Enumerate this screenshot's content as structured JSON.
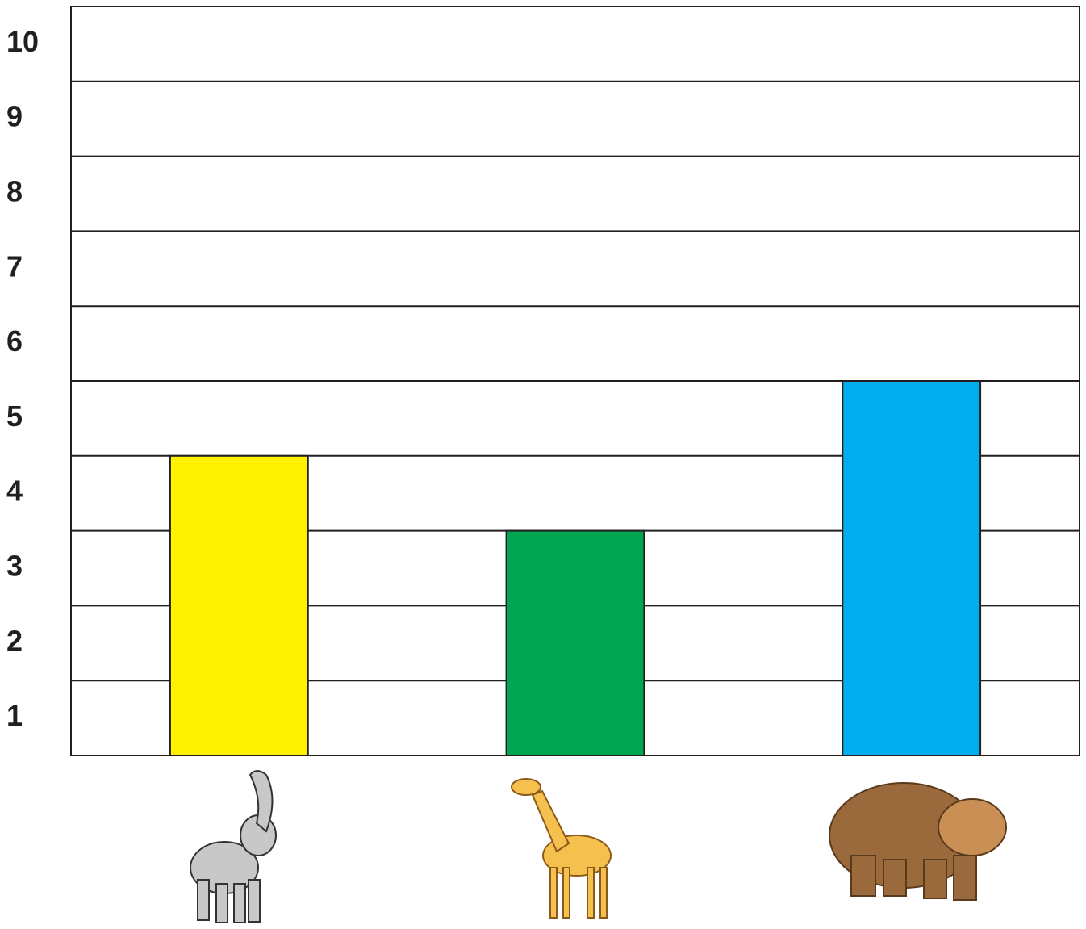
{
  "chart_data": {
    "type": "bar",
    "categories": [
      null,
      null,
      null
    ],
    "values": [
      4,
      3,
      5
    ],
    "colors": [
      "#fff200",
      "#00a651",
      "#00aeef"
    ],
    "ylim": [
      0,
      10
    ],
    "yticks": [
      1,
      2,
      3,
      4,
      5,
      6,
      7,
      8,
      9,
      10
    ],
    "grid": true
  }
}
